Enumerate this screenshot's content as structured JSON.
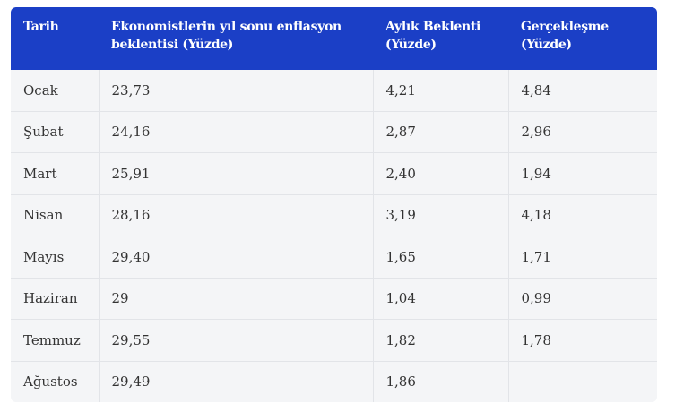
{
  "table": {
    "header": [
      "Tarih",
      "Ekonomistlerin yıl sonu enflasyon beklentisi (Yüzde)",
      "Aylık Beklenti (Yüzde)",
      "Gerçekleşme (Yüzde)"
    ],
    "rows": [
      [
        "Ocak",
        "23,73",
        "4,21",
        "4,84"
      ],
      [
        "Şubat",
        "24,16",
        "2,87",
        "2,96"
      ],
      [
        "Mart",
        "25,91",
        "2,40",
        "1,94"
      ],
      [
        "Nisan",
        "28,16",
        "3,19",
        "4,18"
      ],
      [
        "Mayıs",
        "29,40",
        "1,65",
        "1,71"
      ],
      [
        "Haziran",
        "29",
        "1,04",
        "0,99"
      ],
      [
        "Temmuz",
        "29,55",
        "1,82",
        "1,78"
      ],
      [
        "Ağustos",
        "29,49",
        "1,86"
      ]
    ]
  }
}
